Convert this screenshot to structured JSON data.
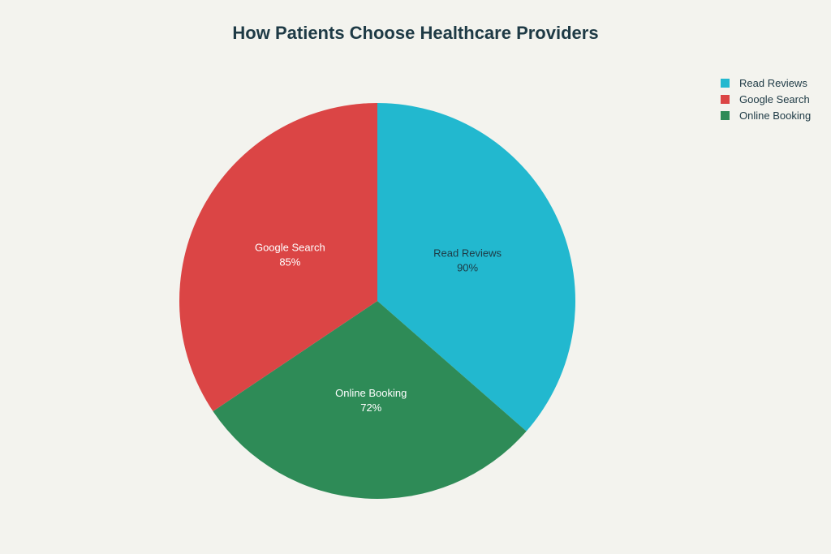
{
  "chart_data": {
    "type": "pie",
    "title": "How Patients Choose Healthcare Providers",
    "slices": [
      {
        "label": "Read Reviews",
        "value": 90,
        "display": "90%",
        "color": "#22b8cf",
        "text_color": "#1e3a45"
      },
      {
        "label": "Online Booking",
        "value": 72,
        "display": "72%",
        "color": "#2e8b57",
        "text_color": "#ffffff"
      },
      {
        "label": "Google Search",
        "value": 85,
        "display": "85%",
        "color": "#db4545",
        "text_color": "#ffffff"
      }
    ],
    "legend": {
      "placement": "top-right",
      "items": [
        {
          "label": "Read Reviews",
          "color": "#22b8cf"
        },
        {
          "label": "Google Search",
          "color": "#db4545"
        },
        {
          "label": "Online Booking",
          "color": "#2e8b57"
        }
      ]
    }
  }
}
